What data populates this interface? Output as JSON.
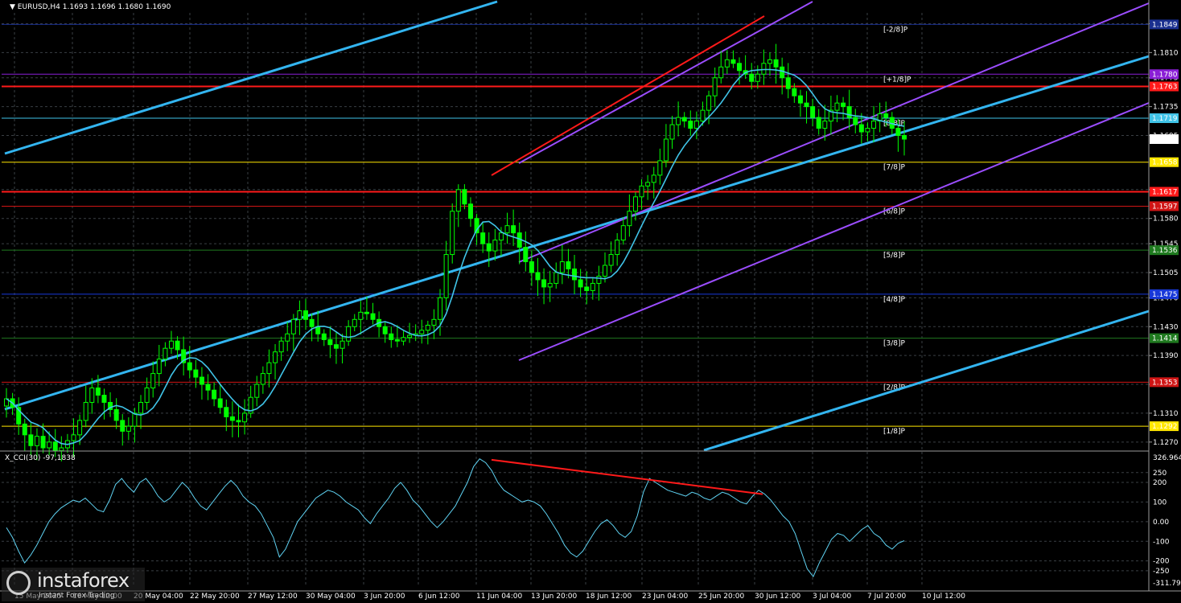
{
  "header": {
    "symbol": "EURUSD,H4",
    "ohlc": "1.1693 1.1696 1.1680 1.1690",
    "indicator": "X_CCI(30) -97,1838"
  },
  "logo": {
    "brand": "instaforex",
    "tagline": "Instant Forex Trading"
  },
  "colors": {
    "background": "#000000",
    "grid": "#3a3f44",
    "candle": "#00ff00",
    "ma": "#40c4e8",
    "trend_blue": "#33b5f0",
    "channel_purple": "#9b4dff",
    "red": "#ff1a1a",
    "cci": "#5fd3f3"
  },
  "chart_data": [
    {
      "type": "candlestick",
      "title": "EURUSD,H4",
      "price_axis_ticks": [
        "1.1850",
        "1.1810",
        "1.1775",
        "1.1735",
        "1.1695",
        "1.1620",
        "1.1580",
        "1.1545",
        "1.1505",
        "1.1470",
        "1.1430",
        "1.1390",
        "1.1350",
        "1.1310",
        "1.1270"
      ],
      "ylim": [
        1.1262,
        1.1865
      ],
      "time_axis_labels": [
        "15 May 2025",
        "16 May 12:00",
        "20 May 04:00",
        "22 May 20:00",
        "27 May 12:00",
        "30 May 04:00",
        "3 Jun 20:00",
        "6 Jun 12:00",
        "11 Jun 04:00",
        "13 Jun 20:00",
        "18 Jun 12:00",
        "23 Jun 04:00",
        "25 Jun 20:00",
        "30 Jun 12:00",
        "3 Jul 04:00",
        "7 Jul 20:00",
        "10 Jul 12:00"
      ],
      "price_levels": [
        {
          "label": "1.1849",
          "value": 1.1849,
          "color": "#1a2f8f",
          "murrey": "[-2/8]P"
        },
        {
          "label": "1.1780",
          "value": 1.178,
          "color": "#8a1fd6",
          "murrey": "[+1/8]P"
        },
        {
          "label": "1.1763",
          "value": 1.1763,
          "color": "#ff1a1a",
          "murrey": ""
        },
        {
          "label": "1.1719",
          "value": 1.1719,
          "color": "#40c4e8",
          "murrey": "[8/8]P"
        },
        {
          "label": "1.1690",
          "value": 1.169,
          "color": "#ffffff",
          "murrey": ""
        },
        {
          "label": "1.1658",
          "value": 1.1658,
          "color": "#ffe600",
          "murrey": "[7/8]P"
        },
        {
          "label": "1.1617",
          "value": 1.1617,
          "color": "#ff1a1a",
          "murrey": ""
        },
        {
          "label": "1.1597",
          "value": 1.1597,
          "color": "#d01515",
          "murrey": "[6/8]P"
        },
        {
          "label": "1.1536",
          "value": 1.1536,
          "color": "#1f7a1f",
          "murrey": "[5/8]P"
        },
        {
          "label": "1.1475",
          "value": 1.1475,
          "color": "#1838d8",
          "murrey": "[4/8]P"
        },
        {
          "label": "1.1414",
          "value": 1.1414,
          "color": "#1f7a1f",
          "murrey": "[3/8]P"
        },
        {
          "label": "1.1353",
          "value": 1.1353,
          "color": "#d01515",
          "murrey": "[2/8]P"
        },
        {
          "label": "1.1292",
          "value": 1.1292,
          "color": "#ffe600",
          "murrey": "[1/8]P"
        }
      ],
      "close_series": [
        1.133,
        1.1318,
        1.1295,
        1.128,
        1.1265,
        1.1278,
        1.1262,
        1.127,
        1.1258,
        1.1262,
        1.1272,
        1.128,
        1.13,
        1.1325,
        1.1345,
        1.1335,
        1.1325,
        1.1315,
        1.13,
        1.1285,
        1.1292,
        1.131,
        1.1325,
        1.1345,
        1.1365,
        1.1385,
        1.14,
        1.141,
        1.1398,
        1.138,
        1.137,
        1.136,
        1.135,
        1.1342,
        1.133,
        1.1318,
        1.1305,
        1.13,
        1.1298,
        1.131,
        1.1332,
        1.135,
        1.1365,
        1.138,
        1.1395,
        1.141,
        1.142,
        1.144,
        1.1452,
        1.144,
        1.143,
        1.142,
        1.1412,
        1.1405,
        1.14,
        1.141,
        1.143,
        1.144,
        1.145,
        1.1448,
        1.144,
        1.143,
        1.142,
        1.1412,
        1.141,
        1.1415,
        1.1418,
        1.142,
        1.1425,
        1.1432,
        1.144,
        1.147,
        1.153,
        1.159,
        1.162,
        1.16,
        1.158,
        1.156,
        1.1545,
        1.1535,
        1.155,
        1.156,
        1.157,
        1.156,
        1.154,
        1.152,
        1.1505,
        1.1495,
        1.1485,
        1.149,
        1.1505,
        1.152,
        1.151,
        1.1495,
        1.1485,
        1.148,
        1.149,
        1.15,
        1.1515,
        1.153,
        1.155,
        1.157,
        1.159,
        1.161,
        1.1625,
        1.163,
        1.164,
        1.166,
        1.169,
        1.171,
        1.172,
        1.1715,
        1.1705,
        1.1715,
        1.173,
        1.175,
        1.1775,
        1.179,
        1.18,
        1.1795,
        1.1785,
        1.178,
        1.177,
        1.178,
        1.1795,
        1.18,
        1.179,
        1.1775,
        1.176,
        1.175,
        1.174,
        1.1735,
        1.172,
        1.1705,
        1.1715,
        1.173,
        1.174,
        1.1735,
        1.172,
        1.171,
        1.17,
        1.1705,
        1.1715,
        1.1725,
        1.172,
        1.1705,
        1.1695,
        1.169
      ],
      "cci": {
        "name": "X_CCI(30)",
        "axis_ticks": [
          "326.9647",
          "250",
          "200",
          "100",
          "0.00",
          "-100",
          "-200",
          "-250",
          "-311.7987"
        ],
        "ylim": [
          -320,
          335
        ],
        "last": -97.1838,
        "values": [
          -30,
          -80,
          -150,
          -210,
          -170,
          -120,
          -60,
          0,
          40,
          70,
          90,
          110,
          100,
          120,
          90,
          60,
          50,
          110,
          190,
          220,
          180,
          150,
          200,
          220,
          180,
          130,
          100,
          120,
          160,
          200,
          170,
          120,
          80,
          60,
          100,
          140,
          180,
          210,
          180,
          130,
          100,
          80,
          40,
          -20,
          -80,
          -180,
          -140,
          -70,
          0,
          40,
          80,
          120,
          140,
          160,
          150,
          130,
          100,
          80,
          60,
          20,
          -10,
          40,
          80,
          120,
          170,
          200,
          160,
          110,
          80,
          40,
          0,
          -30,
          0,
          40,
          80,
          140,
          200,
          280,
          320,
          300,
          260,
          200,
          160,
          140,
          120,
          100,
          110,
          100,
          80,
          40,
          -10,
          -60,
          -120,
          -160,
          -180,
          -150,
          -100,
          -50,
          -10,
          10,
          -20,
          -60,
          -80,
          -50,
          30,
          150,
          220,
          200,
          180,
          160,
          150,
          140,
          130,
          150,
          140,
          120,
          110,
          130,
          150,
          140,
          120,
          100,
          90,
          130,
          160,
          140,
          110,
          70,
          30,
          0,
          -60,
          -150,
          -240,
          -280,
          -210,
          -150,
          -90,
          -60,
          -70,
          -100,
          -70,
          -40,
          -20,
          -60,
          -80,
          -120,
          -140,
          -110,
          -97
        ]
      },
      "trendlines": [
        {
          "name": "cyan-upper",
          "from": [
            "15 May 2025",
            1.1695
          ],
          "to": [
            "11 Jun 04:00",
            1.1888
          ]
        },
        {
          "name": "cyan-middle",
          "from": [
            "15 May 2025",
            1.1352
          ],
          "to": [
            "10 Jul 12:00+",
            1.1778
          ]
        },
        {
          "name": "cyan-lower",
          "from": [
            "25 Jun 20:00",
            1.127
          ],
          "to": [
            "10 Jul 12:00+",
            1.1437
          ]
        }
      ],
      "cci_divergence": {
        "from": 315,
        "to": 140
      }
    }
  ]
}
